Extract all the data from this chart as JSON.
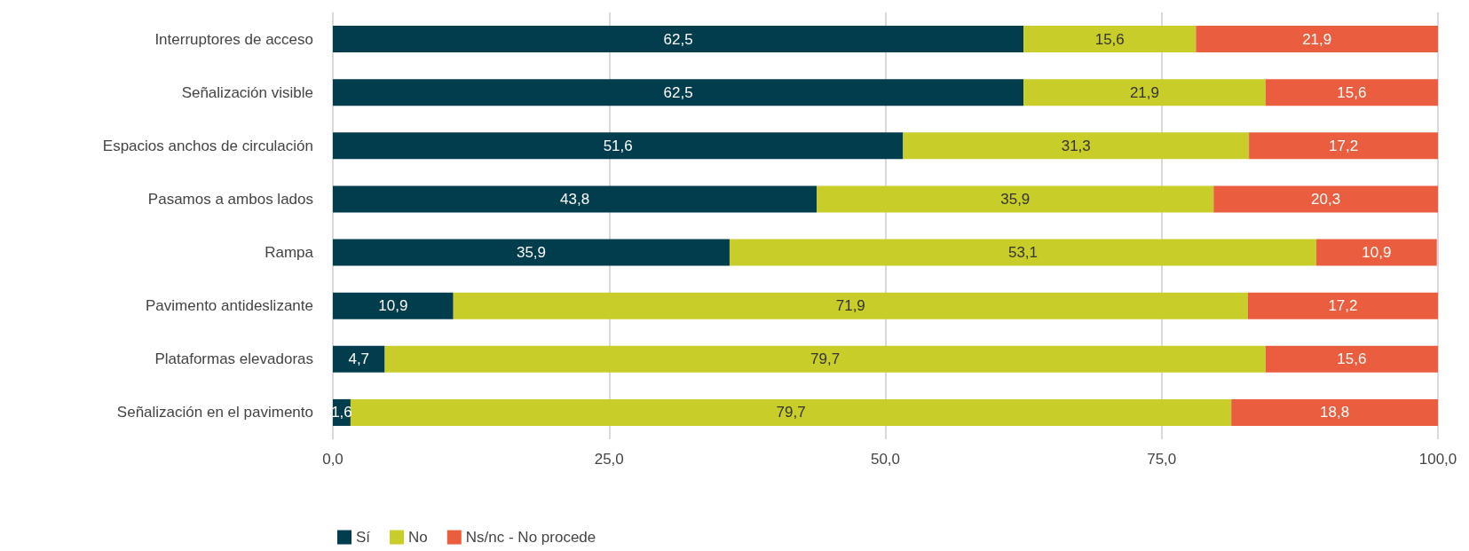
{
  "chart_data": {
    "type": "bar",
    "orientation": "horizontal",
    "stacked": true,
    "categories": [
      "Interruptores de acceso",
      "Señalización visible",
      "Espacios anchos de circulación",
      "Pasamos a ambos lados",
      "Rampa",
      "Pavimento antideslizante",
      "Plataformas elevadoras",
      "Señalización en el pavimento"
    ],
    "series": [
      {
        "name": "Sí",
        "color": "#023d4d",
        "values": [
          62.5,
          62.5,
          51.6,
          43.8,
          35.9,
          10.9,
          4.7,
          1.6
        ],
        "value_labels": [
          "62,5",
          "62,5",
          "51,6",
          "43,8",
          "35,9",
          "10,9",
          "4,7",
          "1,6"
        ]
      },
      {
        "name": "No",
        "color": "#c9cd2a",
        "values": [
          15.6,
          21.9,
          31.3,
          35.9,
          53.1,
          71.9,
          79.7,
          79.7
        ],
        "value_labels": [
          "15,6",
          "21,9",
          "31,3",
          "35,9",
          "53,1",
          "71,9",
          "79,7",
          "79,7"
        ]
      },
      {
        "name": "Ns/nc - No procede",
        "color": "#ea5d3f",
        "values": [
          21.9,
          15.6,
          17.2,
          20.3,
          10.9,
          17.2,
          15.6,
          18.8
        ],
        "value_labels": [
          "21,9",
          "15,6",
          "17,2",
          "20,3",
          "10,9",
          "17,2",
          "15,6",
          "18,8"
        ]
      }
    ],
    "xlim": [
      0,
      100
    ],
    "xticks": [
      {
        "value": 0,
        "label": "0,0"
      },
      {
        "value": 25,
        "label": "25,0"
      },
      {
        "value": 50,
        "label": "50,0"
      },
      {
        "value": 75,
        "label": "75,0"
      },
      {
        "value": 100,
        "label": "100,0"
      }
    ],
    "grid": "x",
    "legend": "bottom left"
  }
}
